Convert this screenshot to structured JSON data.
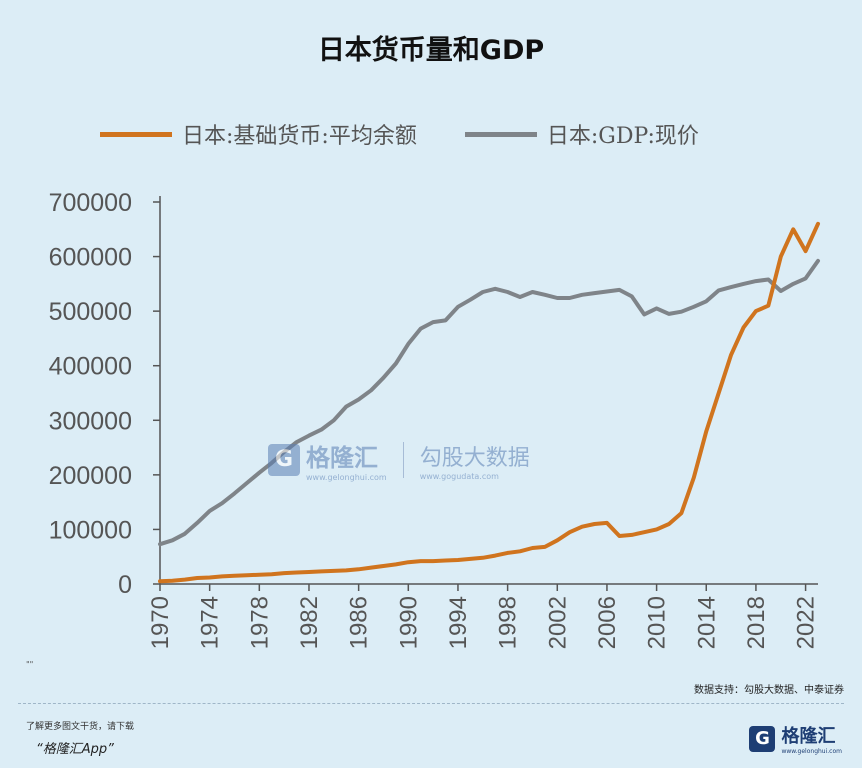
{
  "title": "日本货币量和GDP",
  "chart_data": {
    "type": "line",
    "xlim": [
      1970,
      2023
    ],
    "ylim": [
      0,
      700000
    ],
    "y_ticks": [
      "0",
      "100000",
      "200000",
      "300000",
      "400000",
      "500000",
      "600000",
      "700000"
    ],
    "y_tick_values": [
      0,
      100000,
      200000,
      300000,
      400000,
      500000,
      600000,
      700000
    ],
    "x_ticks": [
      "1970",
      "1974",
      "1978",
      "1982",
      "1986",
      "1990",
      "1994",
      "1998",
      "2002",
      "2006",
      "2010",
      "2014",
      "2018",
      "2022"
    ],
    "x_tick_values": [
      1970,
      1974,
      1978,
      1982,
      1986,
      1990,
      1994,
      1998,
      2002,
      2006,
      2010,
      2014,
      2018,
      2022
    ],
    "x": [
      1970,
      1971,
      1972,
      1973,
      1974,
      1975,
      1976,
      1977,
      1978,
      1979,
      1980,
      1981,
      1982,
      1983,
      1984,
      1985,
      1986,
      1987,
      1988,
      1989,
      1990,
      1991,
      1992,
      1993,
      1994,
      1995,
      1996,
      1997,
      1998,
      1999,
      2000,
      2001,
      2002,
      2003,
      2004,
      2005,
      2006,
      2007,
      2008,
      2009,
      2010,
      2011,
      2012,
      2013,
      2014,
      2015,
      2016,
      2017,
      2018,
      2019,
      2020,
      2021,
      2022,
      2023
    ],
    "series": [
      {
        "name": "日本:基础货币:平均余额",
        "color": "#d0741e",
        "values": [
          5000,
          6000,
          8000,
          11000,
          12000,
          14000,
          15000,
          16000,
          17000,
          18000,
          20000,
          21000,
          22000,
          23000,
          24000,
          25000,
          27000,
          30000,
          33000,
          36000,
          40000,
          42000,
          42000,
          43000,
          44000,
          46000,
          48000,
          52000,
          57000,
          60000,
          66000,
          68000,
          80000,
          95000,
          105000,
          110000,
          112000,
          88000,
          90000,
          95000,
          100000,
          110000,
          130000,
          195000,
          280000,
          350000,
          420000,
          470000,
          500000,
          510000,
          600000,
          650000,
          610000,
          660000
        ]
      },
      {
        "name": "日本:GDP:现价",
        "color": "#7f8489",
        "values": [
          73000,
          80000,
          92000,
          112000,
          134000,
          148000,
          166000,
          185000,
          204000,
          222000,
          242000,
          260000,
          272000,
          283000,
          300000,
          325000,
          338000,
          355000,
          378000,
          404000,
          440000,
          468000,
          480000,
          483000,
          508000,
          521000,
          535000,
          541000,
          535000,
          526000,
          535000,
          530000,
          524000,
          524000,
          530000,
          533000,
          536000,
          539000,
          527000,
          494000,
          505000,
          495000,
          499000,
          508000,
          518000,
          538000,
          544000,
          550000,
          555000,
          558000,
          537000,
          550000,
          560000,
          592000
        ]
      }
    ]
  },
  "watermark": {
    "brand": "格隆汇",
    "brand_url": "www.gelonghui.com",
    "logo_letter": "G",
    "partner": "勾股大数据",
    "partner_url": "www.gogudata.com"
  },
  "tiny_mark": "\"\"",
  "source": "数据支持：勾股大数据、中泰证券",
  "promo_line1": "了解更多图文干货，请下载",
  "promo_line2": "“格隆汇App”",
  "footer": {
    "logo_letter": "G",
    "brand": "格隆汇",
    "url": "www.gelonghui.com"
  }
}
